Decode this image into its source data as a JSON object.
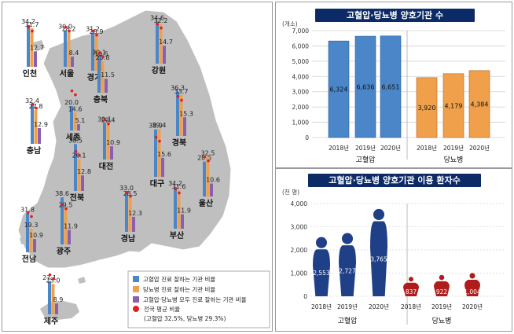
{
  "colors": {
    "hypertension": "#4a86c8",
    "diabetes": "#f0a04b",
    "both": "#8a5fb0",
    "national_avg": "#e02020",
    "map": "#bfbfbf",
    "ht_people": "#1f3f86",
    "dm_people": "#b01c1c",
    "title_bg": "#0b2a66"
  },
  "chart_data": [
    {
      "type": "bar",
      "panel": "map",
      "regions": [
        {
          "name": "인천",
          "values": [
            34.2,
            31.7,
            12.7
          ]
        },
        {
          "name": "서울",
          "values": [
            30.0,
            28.2,
            8.4
          ]
        },
        {
          "name": "경기",
          "values": [
            31.2,
            28.9,
            10.5
          ]
        },
        {
          "name": "강원",
          "values": [
            34.6,
            32.2,
            14.7
          ]
        },
        {
          "name": "충북",
          "values": [
            30.1,
            25.8,
            11.5
          ]
        },
        {
          "name": "세종",
          "values": [
            20.0,
            14.6,
            5.1
          ]
        },
        {
          "name": "충남",
          "values": [
            32.4,
            27.8,
            12.9
          ]
        },
        {
          "name": "대전",
          "values": [
            30.1,
            29.4,
            10.9
          ]
        },
        {
          "name": "경북",
          "values": [
            36.3,
            33.7,
            15.3
          ]
        },
        {
          "name": "전북",
          "values": [
            38.5,
            26.1,
            12.8
          ]
        },
        {
          "name": "대구",
          "values": [
            38.9,
            39.4,
            15.6
          ]
        },
        {
          "name": "울산",
          "values": [
            28.6,
            32.5,
            10.6
          ]
        },
        {
          "name": "광주",
          "values": [
            38.6,
            29.5,
            11.9
          ]
        },
        {
          "name": "전남",
          "values": [
            31.8,
            19.3,
            10.9
          ]
        },
        {
          "name": "경남",
          "values": [
            33.0,
            28.5,
            12.3
          ]
        },
        {
          "name": "부산",
          "values": [
            34.2,
            31.6,
            11.9
          ]
        },
        {
          "name": "제주",
          "values": [
            27.1,
            25.0,
            8.9
          ]
        }
      ],
      "national_average": {
        "hypertension": 32.5,
        "diabetes": 29.3
      },
      "legend": [
        "고혈압 진료 잘하는 기관 비율",
        "당뇨병 진료 잘하는 기관 비율",
        "고혈압·당뇨병 모두 진료 잘하는 기관 비율",
        "전국 평균 비율",
        "(고혈압 32.5%, 당뇨병 29.3%)"
      ]
    },
    {
      "type": "bar",
      "title": "고혈압·당뇨병 양호기관 수",
      "ylabel": "(개소)",
      "ylim": [
        0,
        7000
      ],
      "yticks": [
        "0",
        "1,000",
        "2,000",
        "3,000",
        "4,000",
        "5,000",
        "6,000",
        "7,000"
      ],
      "groups": [
        {
          "name": "고혈압",
          "categories": [
            "2018년",
            "2019년",
            "2020년"
          ],
          "values": [
            6324,
            6636,
            6651
          ],
          "labels": [
            "6,324",
            "6,636",
            "6,651"
          ]
        },
        {
          "name": "당뇨병",
          "categories": [
            "2018년",
            "2019년",
            "2020년"
          ],
          "values": [
            3920,
            4179,
            4384
          ],
          "labels": [
            "3,920",
            "4,179",
            "4,384"
          ]
        }
      ]
    },
    {
      "type": "bar",
      "title": "고혈압·당뇨병 양호기관 이용 환자수",
      "ylabel": "(천 명)",
      "ylim": [
        0,
        4000
      ],
      "yticks": [
        "0",
        "1,000",
        "2,000",
        "3,000",
        "4,000"
      ],
      "groups": [
        {
          "name": "고혈압",
          "categories": [
            "2018년",
            "2019년",
            "2020년"
          ],
          "values": [
            2553,
            2727,
            3765
          ],
          "labels": [
            "2,553",
            "2,727",
            "3,765"
          ]
        },
        {
          "name": "당뇨병",
          "categories": [
            "2018년",
            "2019년",
            "2020년"
          ],
          "values": [
            837,
            922,
            1004
          ],
          "labels": [
            "837",
            "922",
            "1,004"
          ]
        }
      ]
    }
  ]
}
